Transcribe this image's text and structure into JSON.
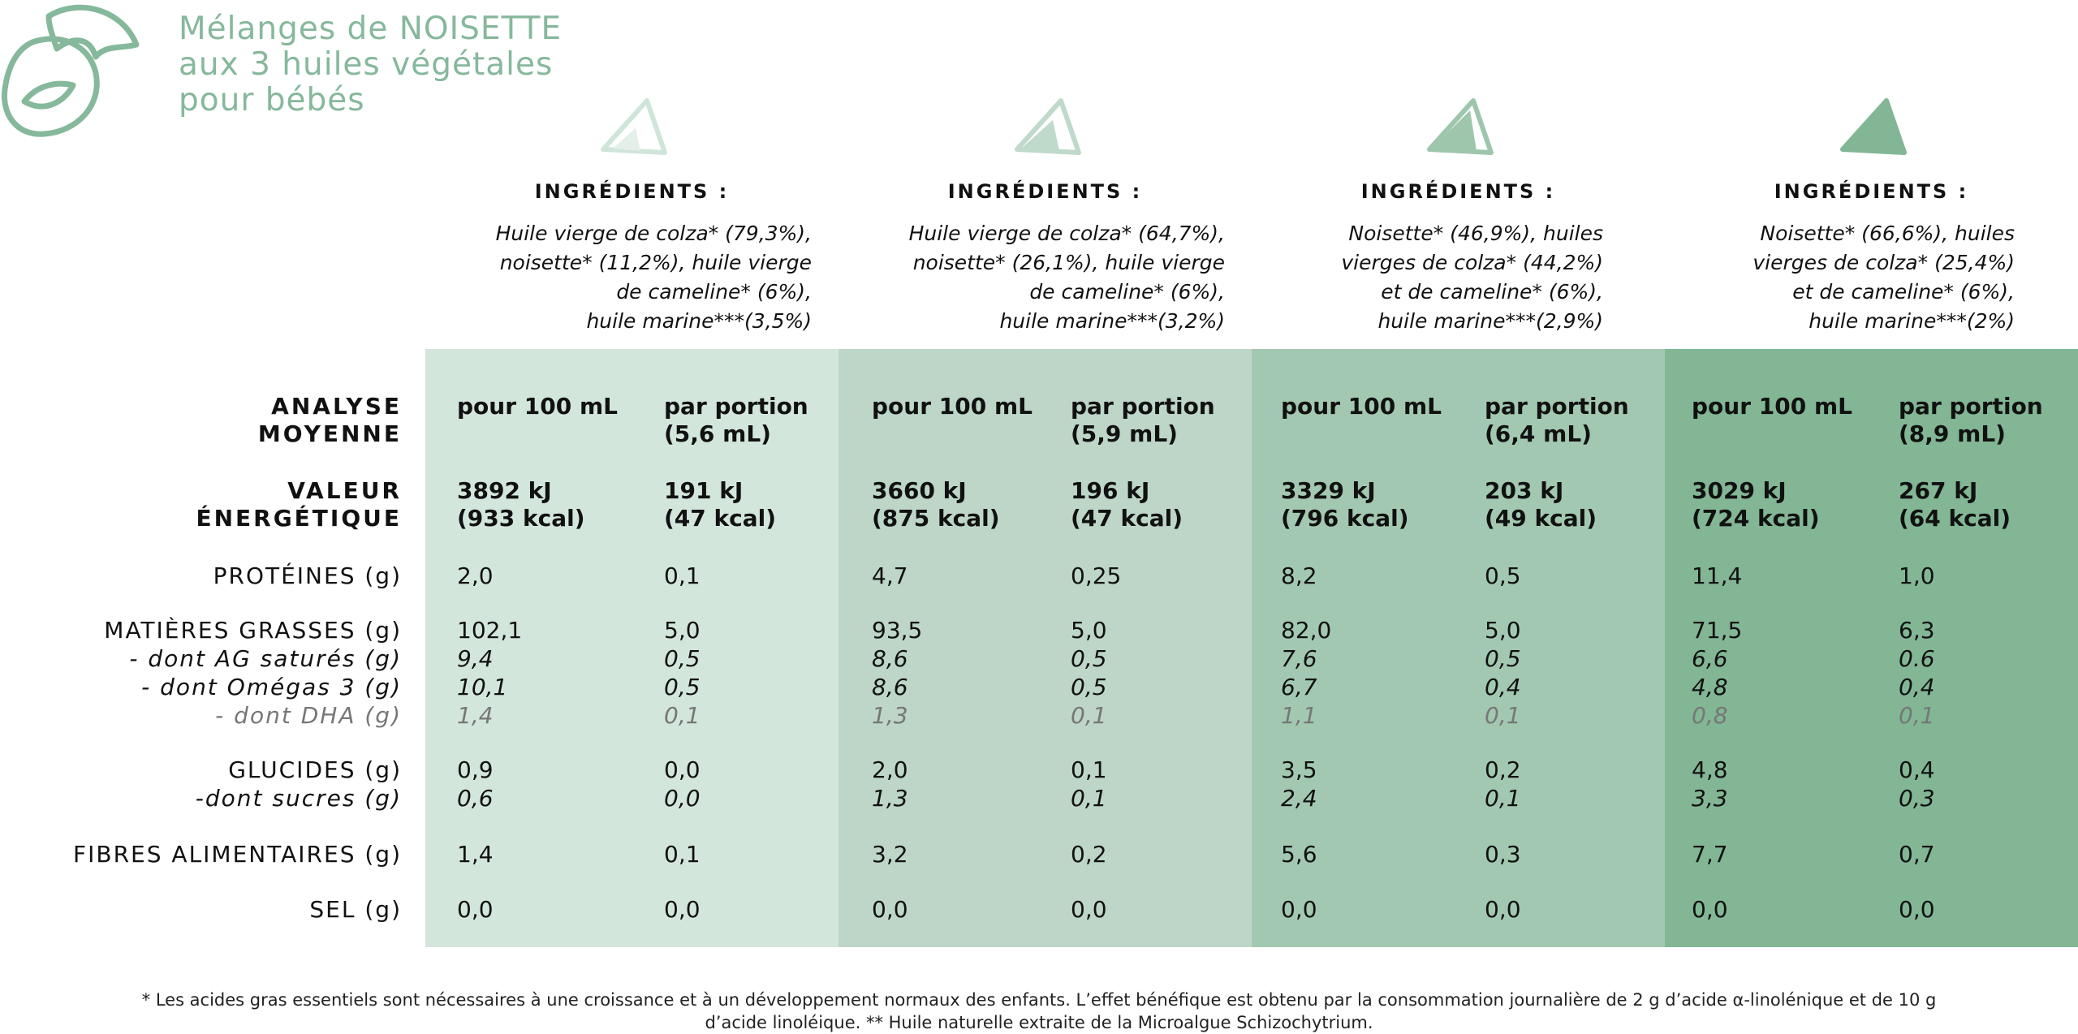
{
  "title": {
    "line1": "Mélanges de NOISETTE",
    "line2": "aux 3 huiles végétales",
    "line3": "pour bébés"
  },
  "colors": {
    "accent": "#86b89c",
    "col1": "#d3e6dc",
    "col2": "#bdd6c8",
    "col3": "#a3c8b1",
    "col4": "#82b695"
  },
  "products": [
    {
      "ingredients_title": "INGRÉDIENTS :",
      "ingredients": [
        "Huile vierge  de colza* (79,3%),",
        "noisette* (11,2%), huile vierge",
        "de cameline* (6%),",
        "huile marine***(3,5%)"
      ]
    },
    {
      "ingredients_title": "INGRÉDIENTS :",
      "ingredients": [
        "Huile vierge de colza* (64,7%),",
        "noisette* (26,1%), huile vierge",
        "de cameline* (6%),",
        "huile marine***(3,2%)"
      ]
    },
    {
      "ingredients_title": "INGRÉDIENTS :",
      "ingredients": [
        "Noisette* (46,9%), huiles",
        "vierges de colza* (44,2%)",
        "et de cameline* (6%),",
        "huile marine***(2,9%)"
      ]
    },
    {
      "ingredients_title": "INGRÉDIENTS :",
      "ingredients": [
        "Noisette* (66,6%),  huiles",
        "vierges de colza* (25,4%)",
        "et de cameline* (6%),",
        "huile marine***(2%)"
      ]
    }
  ],
  "labels": {
    "analyse1": "ANALYSE",
    "analyse2": "MOYENNE",
    "energie1": "VALEUR",
    "energie2": "ÉNERGÉTIQUE",
    "proteines": "PROTÉINES (g)",
    "matieres": "MATIÈRES GRASSES (g)",
    "satures": "- dont AG saturés (g)",
    "omegas": "- dont Omégas 3 (g)",
    "dha": "- dont DHA (g)",
    "glucides": "GLUCIDES (g)",
    "sucres": "-dont sucres (g)",
    "fibres": "FIBRES ALIMENTAIRES (g)",
    "sel": "SEL (g)"
  },
  "columns": [
    {
      "head1": "pour 100 mL",
      "head2": "",
      "energy1": "3892 kJ",
      "energy2": "(933 kcal)",
      "proteines": "2,0",
      "matieres": "102,1",
      "satures": "9,4",
      "omegas": "10,1",
      "dha": "1,4",
      "glucides": "0,9",
      "sucres": "0,6",
      "fibres": "1,4",
      "sel": "0,0"
    },
    {
      "head1": "par portion",
      "head2": "(5,6 mL)",
      "energy1": "191 kJ",
      "energy2": "(47 kcal)",
      "proteines": "0,1",
      "matieres": "5,0",
      "satures": "0,5",
      "omegas": "0,5",
      "dha": "0,1",
      "glucides": "0,0",
      "sucres": "0,0",
      "fibres": "0,1",
      "sel": "0,0"
    },
    {
      "head1": "pour 100 mL",
      "head2": "",
      "energy1": "3660 kJ",
      "energy2": "(875 kcal)",
      "proteines": "4,7",
      "matieres": "93,5",
      "satures": "8,6",
      "omegas": "8,6",
      "dha": "1,3",
      "glucides": "2,0",
      "sucres": "1,3",
      "fibres": "3,2",
      "sel": "0,0"
    },
    {
      "head1": "par portion",
      "head2": "(5,9 mL)",
      "energy1": "196 kJ",
      "energy2": "(47 kcal)",
      "proteines": "0,25",
      "matieres": "5,0",
      "satures": "0,5",
      "omegas": "0,5",
      "dha": "0,1",
      "glucides": "0,1",
      "sucres": "0,1",
      "fibres": "0,2",
      "sel": "0,0"
    },
    {
      "head1": "pour 100 mL",
      "head2": "",
      "energy1": "3329 kJ",
      "energy2": "(796 kcal)",
      "proteines": "8,2",
      "matieres": "82,0",
      "satures": "7,6",
      "omegas": "6,7",
      "dha": "1,1",
      "glucides": "3,5",
      "sucres": "2,4",
      "fibres": "5,6",
      "sel": "0,0"
    },
    {
      "head1": "par portion",
      "head2": "(6,4 mL)",
      "energy1": "203 kJ",
      "energy2": "(49 kcal)",
      "proteines": "0,5",
      "matieres": "5,0",
      "satures": "0,5",
      "omegas": "0,4",
      "dha": "0,1",
      "glucides": "0,2",
      "sucres": "0,1",
      "fibres": "0,3",
      "sel": "0,0"
    },
    {
      "head1": "pour 100 mL",
      "head2": "",
      "energy1": "3029 kJ",
      "energy2": "(724 kcal)",
      "proteines": "11,4",
      "matieres": "71,5",
      "satures": "6,6",
      "omegas": "4,8",
      "dha": "0,8",
      "glucides": "4,8",
      "sucres": "3,3",
      "fibres": "7,7",
      "sel": "0,0"
    },
    {
      "head1": "par portion",
      "head2": "(8,9 mL)",
      "energy1": "267 kJ",
      "energy2": "(64 kcal)",
      "proteines": "1,0",
      "matieres": "6,3",
      "satures": "0.6",
      "omegas": "0,4",
      "dha": "0,1",
      "glucides": "0,4",
      "sucres": "0,3",
      "fibres": "0,7",
      "sel": "0,0"
    }
  ],
  "footnote": {
    "line1": "* Les acides gras essentiels sont nécessaires à une croissance et à un développement normaux des enfants. L’effet bénéfique est obtenu par la consommation journalière de 2 g d’acide α-linolénique et de 10 g",
    "line2": "d’acide linoléique. ** Huile naturelle extraite de la Microalgue Schizochytrium."
  }
}
